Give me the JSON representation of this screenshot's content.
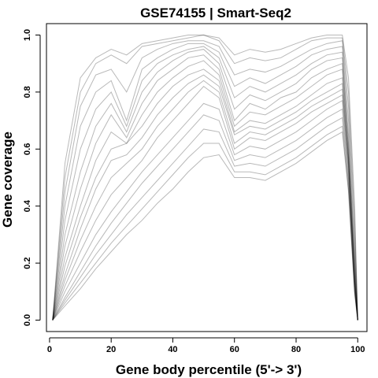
{
  "chart_data": {
    "type": "line",
    "title": "GSE74155 | Smart-Seq2",
    "xlabel": "Gene body percentile (5'-> 3')",
    "ylabel": "Gene coverage",
    "xlim": [
      -1,
      103
    ],
    "ylim": [
      -0.04,
      1.04
    ],
    "xticks": [
      0,
      20,
      40,
      60,
      80,
      100
    ],
    "yticks": [
      0.0,
      0.2,
      0.4,
      0.6,
      0.8,
      1.0
    ],
    "xtick_labels": [
      "0",
      "20",
      "40",
      "60",
      "80",
      "100"
    ],
    "ytick_labels": [
      "0.0",
      "0.2",
      "0.4",
      "0.6",
      "0.8",
      "1.0"
    ],
    "grid": false,
    "legend": "none",
    "line_color": "#000000",
    "line_opacity": 0.28,
    "x": [
      1,
      5,
      10,
      15,
      20,
      25,
      30,
      35,
      40,
      45,
      50,
      55,
      60,
      65,
      70,
      75,
      80,
      85,
      90,
      95,
      97,
      99,
      100
    ],
    "series": [
      {
        "values": [
          0.0,
          0.55,
          0.85,
          0.92,
          0.95,
          0.93,
          0.97,
          0.98,
          0.99,
          1.0,
          1.0,
          0.99,
          0.93,
          0.95,
          0.94,
          0.95,
          0.97,
          0.99,
          1.0,
          1.0,
          0.85,
          0.4,
          0.0
        ]
      },
      {
        "values": [
          0.0,
          0.5,
          0.8,
          0.9,
          0.93,
          0.9,
          0.96,
          0.97,
          0.98,
          0.99,
          1.0,
          0.98,
          0.9,
          0.92,
          0.91,
          0.92,
          0.95,
          0.98,
          0.99,
          0.99,
          0.8,
          0.35,
          0.0
        ]
      },
      {
        "values": [
          0.0,
          0.45,
          0.75,
          0.86,
          0.88,
          0.8,
          0.92,
          0.95,
          0.97,
          0.98,
          0.98,
          0.96,
          0.86,
          0.88,
          0.87,
          0.89,
          0.92,
          0.95,
          0.97,
          0.98,
          0.75,
          0.3,
          0.0
        ]
      },
      {
        "values": [
          0.0,
          0.4,
          0.68,
          0.8,
          0.84,
          0.7,
          0.88,
          0.92,
          0.95,
          0.97,
          0.97,
          0.94,
          0.82,
          0.85,
          0.83,
          0.86,
          0.89,
          0.93,
          0.95,
          0.96,
          0.7,
          0.25,
          0.0
        ]
      },
      {
        "values": [
          0.0,
          0.35,
          0.6,
          0.74,
          0.8,
          0.68,
          0.84,
          0.9,
          0.93,
          0.95,
          0.96,
          0.92,
          0.78,
          0.82,
          0.8,
          0.83,
          0.86,
          0.9,
          0.93,
          0.94,
          0.65,
          0.22,
          0.0
        ]
      },
      {
        "values": [
          0.0,
          0.3,
          0.52,
          0.68,
          0.76,
          0.66,
          0.8,
          0.87,
          0.91,
          0.94,
          0.95,
          0.9,
          0.74,
          0.79,
          0.77,
          0.8,
          0.83,
          0.88,
          0.91,
          0.92,
          0.62,
          0.2,
          0.0
        ]
      },
      {
        "values": [
          0.0,
          0.26,
          0.46,
          0.62,
          0.72,
          0.64,
          0.76,
          0.84,
          0.88,
          0.92,
          0.93,
          0.88,
          0.7,
          0.76,
          0.74,
          0.78,
          0.8,
          0.85,
          0.88,
          0.9,
          0.6,
          0.18,
          0.0
        ]
      },
      {
        "values": [
          0.0,
          0.22,
          0.4,
          0.56,
          0.66,
          0.62,
          0.72,
          0.8,
          0.85,
          0.89,
          0.91,
          0.86,
          0.68,
          0.73,
          0.72,
          0.75,
          0.78,
          0.82,
          0.86,
          0.88,
          0.58,
          0.16,
          0.0
        ]
      },
      {
        "values": [
          0.0,
          0.19,
          0.36,
          0.5,
          0.6,
          0.62,
          0.68,
          0.76,
          0.82,
          0.86,
          0.88,
          0.84,
          0.66,
          0.7,
          0.69,
          0.72,
          0.75,
          0.79,
          0.83,
          0.85,
          0.57,
          0.15,
          0.0
        ]
      },
      {
        "values": [
          0.0,
          0.16,
          0.32,
          0.46,
          0.56,
          0.58,
          0.64,
          0.72,
          0.78,
          0.83,
          0.86,
          0.82,
          0.65,
          0.68,
          0.67,
          0.7,
          0.73,
          0.77,
          0.8,
          0.83,
          0.56,
          0.14,
          0.0
        ]
      },
      {
        "values": [
          0.0,
          0.14,
          0.28,
          0.4,
          0.5,
          0.55,
          0.6,
          0.68,
          0.74,
          0.8,
          0.84,
          0.8,
          0.62,
          0.66,
          0.65,
          0.68,
          0.71,
          0.75,
          0.78,
          0.81,
          0.55,
          0.14,
          0.0
        ]
      },
      {
        "values": [
          0.0,
          0.12,
          0.24,
          0.35,
          0.44,
          0.5,
          0.56,
          0.64,
          0.7,
          0.76,
          0.82,
          0.78,
          0.6,
          0.64,
          0.63,
          0.66,
          0.69,
          0.73,
          0.76,
          0.79,
          0.54,
          0.13,
          0.0
        ]
      },
      {
        "values": [
          0.0,
          0.1,
          0.2,
          0.3,
          0.38,
          0.45,
          0.52,
          0.58,
          0.64,
          0.7,
          0.76,
          0.74,
          0.58,
          0.61,
          0.6,
          0.63,
          0.66,
          0.7,
          0.74,
          0.77,
          0.52,
          0.12,
          0.0
        ]
      },
      {
        "values": [
          0.0,
          0.08,
          0.17,
          0.26,
          0.34,
          0.41,
          0.48,
          0.54,
          0.6,
          0.66,
          0.72,
          0.7,
          0.56,
          0.58,
          0.57,
          0.6,
          0.63,
          0.67,
          0.71,
          0.74,
          0.5,
          0.11,
          0.0
        ]
      },
      {
        "values": [
          0.0,
          0.07,
          0.15,
          0.23,
          0.3,
          0.37,
          0.43,
          0.49,
          0.55,
          0.61,
          0.67,
          0.66,
          0.54,
          0.55,
          0.54,
          0.57,
          0.6,
          0.64,
          0.68,
          0.71,
          0.48,
          0.1,
          0.0
        ]
      },
      {
        "values": [
          0.0,
          0.06,
          0.13,
          0.2,
          0.27,
          0.33,
          0.39,
          0.45,
          0.51,
          0.57,
          0.62,
          0.62,
          0.52,
          0.52,
          0.51,
          0.54,
          0.57,
          0.61,
          0.65,
          0.68,
          0.46,
          0.1,
          0.0
        ]
      },
      {
        "values": [
          0.0,
          0.05,
          0.11,
          0.18,
          0.24,
          0.3,
          0.35,
          0.41,
          0.46,
          0.52,
          0.57,
          0.58,
          0.5,
          0.5,
          0.49,
          0.52,
          0.55,
          0.59,
          0.63,
          0.66,
          0.45,
          0.09,
          0.0
        ]
      }
    ]
  }
}
